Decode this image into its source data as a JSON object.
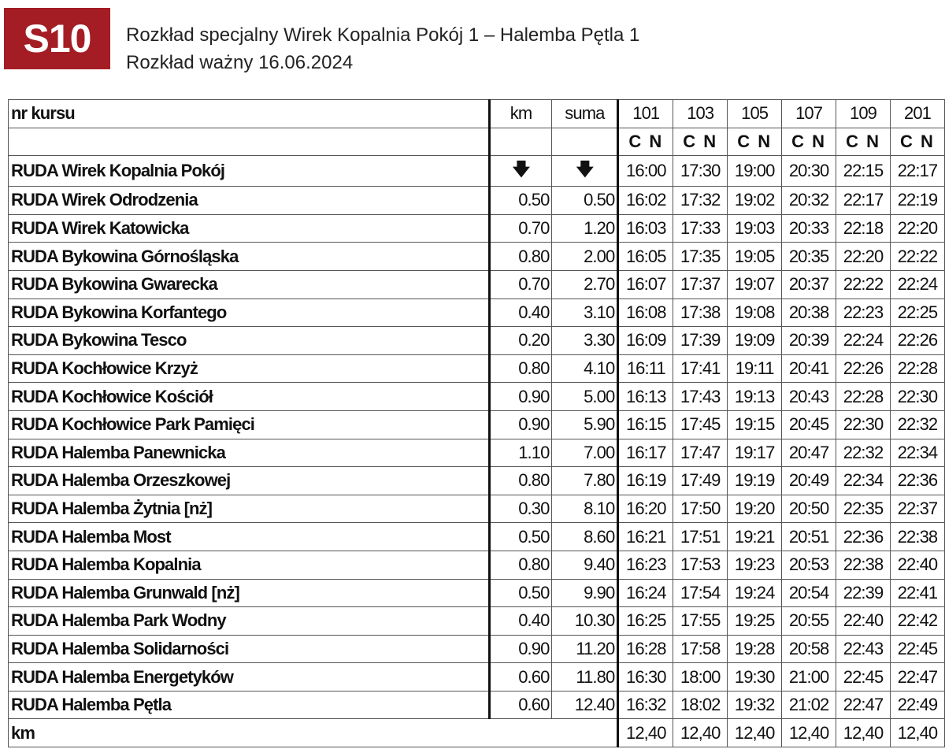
{
  "header": {
    "line_badge": "S10",
    "badge_color": "#a51d24",
    "title": "Rozkład specjalny Wirek Kopalnia Pokój 1 – Halemba Pętla 1",
    "validity": "Rozkład ważny 16.06.2024"
  },
  "table": {
    "col_name": "nr kursu",
    "col_km": "km",
    "col_suma": "suma",
    "courses": [
      "101",
      "103",
      "105",
      "107",
      "109",
      "201"
    ],
    "course_days": [
      "C N",
      "C N",
      "C N",
      "C N",
      "C N",
      "C N"
    ],
    "first_row_icon": "arrow-down-icon",
    "arrow_glyph": "🡇",
    "stops": [
      {
        "name": "RUDA Wirek Kopalnia Pokój",
        "km": "",
        "suma": "",
        "times": [
          "16:00",
          "17:30",
          "19:00",
          "20:30",
          "22:15",
          "22:17"
        ]
      },
      {
        "name": "RUDA Wirek Odrodzenia",
        "km": "0.50",
        "suma": "0.50",
        "times": [
          "16:02",
          "17:32",
          "19:02",
          "20:32",
          "22:17",
          "22:19"
        ]
      },
      {
        "name": "RUDA Wirek Katowicka",
        "km": "0.70",
        "suma": "1.20",
        "times": [
          "16:03",
          "17:33",
          "19:03",
          "20:33",
          "22:18",
          "22:20"
        ]
      },
      {
        "name": "RUDA Bykowina Górnośląska",
        "km": "0.80",
        "suma": "2.00",
        "times": [
          "16:05",
          "17:35",
          "19:05",
          "20:35",
          "22:20",
          "22:22"
        ]
      },
      {
        "name": "RUDA Bykowina Gwarecka",
        "km": "0.70",
        "suma": "2.70",
        "times": [
          "16:07",
          "17:37",
          "19:07",
          "20:37",
          "22:22",
          "22:24"
        ]
      },
      {
        "name": "RUDA Bykowina Korfantego",
        "km": "0.40",
        "suma": "3.10",
        "times": [
          "16:08",
          "17:38",
          "19:08",
          "20:38",
          "22:23",
          "22:25"
        ]
      },
      {
        "name": "RUDA Bykowina Tesco",
        "km": "0.20",
        "suma": "3.30",
        "times": [
          "16:09",
          "17:39",
          "19:09",
          "20:39",
          "22:24",
          "22:26"
        ]
      },
      {
        "name": "RUDA Kochłowice Krzyż",
        "km": "0.80",
        "suma": "4.10",
        "times": [
          "16:11",
          "17:41",
          "19:11",
          "20:41",
          "22:26",
          "22:28"
        ]
      },
      {
        "name": "RUDA Kochłowice Kościół",
        "km": "0.90",
        "suma": "5.00",
        "times": [
          "16:13",
          "17:43",
          "19:13",
          "20:43",
          "22:28",
          "22:30"
        ]
      },
      {
        "name": "RUDA Kochłowice Park Pamięci",
        "km": "0.90",
        "suma": "5.90",
        "times": [
          "16:15",
          "17:45",
          "19:15",
          "20:45",
          "22:30",
          "22:32"
        ]
      },
      {
        "name": "RUDA Halemba Panewnicka",
        "km": "1.10",
        "suma": "7.00",
        "times": [
          "16:17",
          "17:47",
          "19:17",
          "20:47",
          "22:32",
          "22:34"
        ]
      },
      {
        "name": "RUDA Halemba Orzeszkowej",
        "km": "0.80",
        "suma": "7.80",
        "times": [
          "16:19",
          "17:49",
          "19:19",
          "20:49",
          "22:34",
          "22:36"
        ]
      },
      {
        "name": "RUDA Halemba Żytnia [nż]",
        "km": "0.30",
        "suma": "8.10",
        "times": [
          "16:20",
          "17:50",
          "19:20",
          "20:50",
          "22:35",
          "22:37"
        ]
      },
      {
        "name": "RUDA Halemba Most",
        "km": "0.50",
        "suma": "8.60",
        "times": [
          "16:21",
          "17:51",
          "19:21",
          "20:51",
          "22:36",
          "22:38"
        ]
      },
      {
        "name": "RUDA Halemba Kopalnia",
        "km": "0.80",
        "suma": "9.40",
        "times": [
          "16:23",
          "17:53",
          "19:23",
          "20:53",
          "22:38",
          "22:40"
        ]
      },
      {
        "name": "RUDA Halemba Grunwald [nż]",
        "km": "0.50",
        "suma": "9.90",
        "times": [
          "16:24",
          "17:54",
          "19:24",
          "20:54",
          "22:39",
          "22:41"
        ]
      },
      {
        "name": "RUDA Halemba Park Wodny",
        "km": "0.40",
        "suma": "10.30",
        "times": [
          "16:25",
          "17:55",
          "19:25",
          "20:55",
          "22:40",
          "22:42"
        ]
      },
      {
        "name": "RUDA Halemba Solidarności",
        "km": "0.90",
        "suma": "11.20",
        "times": [
          "16:28",
          "17:58",
          "19:28",
          "20:58",
          "22:43",
          "22:45"
        ]
      },
      {
        "name": "RUDA Halemba Energetyków",
        "km": "0.60",
        "suma": "11.80",
        "times": [
          "16:30",
          "18:00",
          "19:30",
          "21:00",
          "22:45",
          "22:47"
        ]
      },
      {
        "name": "RUDA Halemba Pętla",
        "km": "0.60",
        "suma": "12.40",
        "times": [
          "16:32",
          "18:02",
          "19:32",
          "21:02",
          "22:47",
          "22:49"
        ]
      }
    ],
    "footer_label": "km",
    "footer_values": [
      "12,40",
      "12,40",
      "12,40",
      "12,40",
      "12,40",
      "12,40"
    ]
  }
}
